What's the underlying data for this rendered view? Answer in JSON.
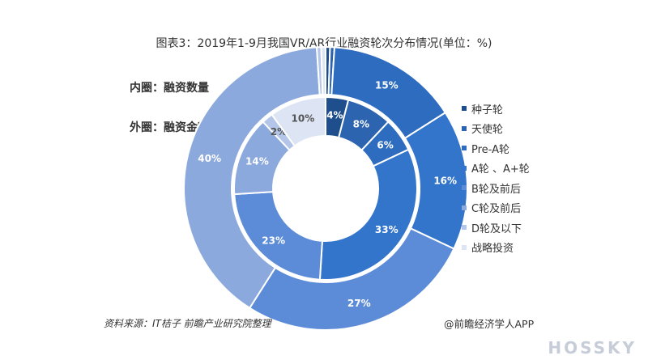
{
  "title": "图表3：2019年1-9月我国VR/AR行业融资轮次分布情况(单位：%)",
  "notes": {
    "inner": "内圈：融资数量",
    "outer": "外圈：融资金额"
  },
  "source": "资料来源：IT桔子 前瞻产业研究院整理",
  "credit": "@前瞻经济学人APP",
  "brand": "HOSSKY",
  "chart_data": {
    "type": "donut",
    "title": "图表3：2019年1-9月我国VR/AR行业融资轮次分布情况(单位：%)",
    "categories": [
      "种子轮",
      "天使轮",
      "Pre-A轮",
      "A轮、A+轮",
      "B轮及前后",
      "C轮及前后",
      "D轮及以下",
      "战略投资"
    ],
    "legend_labels": [
      "种子轮",
      "天使轮",
      "Pre-A轮",
      "A轮 、A+轮",
      "B轮及前后",
      "C轮及前后",
      "D轮及以下",
      "战略投资"
    ],
    "colors": [
      "#1f4e8c",
      "#2d64b0",
      "#2e6cc0",
      "#3475cc",
      "#5c8bd8",
      "#8ca9de",
      "#b3c6e9",
      "#dde5f4"
    ],
    "legend_position": "right",
    "series": [
      {
        "ring": "inner",
        "values": [
          4,
          8,
          6,
          33,
          23,
          14,
          2,
          10
        ]
      },
      {
        "ring": "outer",
        "values": [
          0.5,
          0.5,
          15,
          16,
          27,
          40,
          0.5,
          0.5
        ]
      }
    ],
    "labels": {
      "inner": [
        "4%",
        "8%",
        "6%",
        "33%",
        "23%",
        "14%",
        "2%",
        "10%"
      ],
      "outer": [
        "",
        "",
        "15%",
        "16%",
        "27%",
        "40%",
        "",
        ""
      ]
    }
  }
}
